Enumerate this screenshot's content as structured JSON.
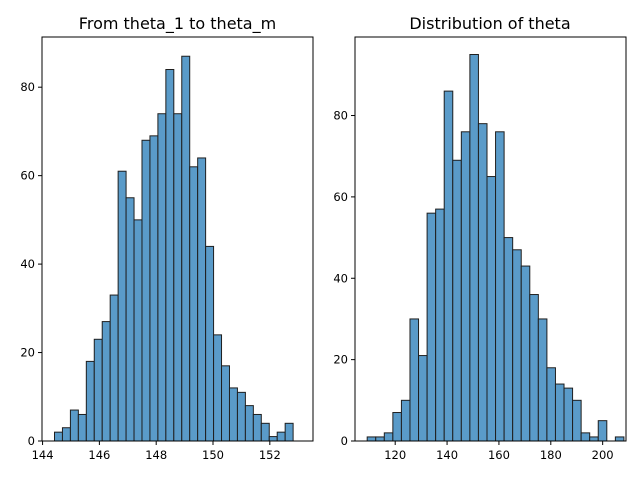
{
  "chart_data": [
    {
      "type": "bar",
      "title": "From theta_1 to theta_m",
      "xlabel": "",
      "ylabel": "",
      "xlim": [
        143.98,
        153.52
      ],
      "ylim": [
        0,
        91.35
      ],
      "xticks": [
        144,
        146,
        148,
        150,
        152
      ],
      "yticks": [
        0,
        20,
        40,
        60,
        80
      ],
      "grid": false,
      "bar_color": "#5a9bc9",
      "edge_color": "#1f1f1f",
      "bins": [
        {
          "x0": 144.42,
          "x1": 144.7,
          "count": 2
        },
        {
          "x0": 144.7,
          "x1": 144.98,
          "count": 3
        },
        {
          "x0": 144.98,
          "x1": 145.26,
          "count": 7
        },
        {
          "x0": 145.26,
          "x1": 145.54,
          "count": 6
        },
        {
          "x0": 145.54,
          "x1": 145.82,
          "count": 18
        },
        {
          "x0": 145.82,
          "x1": 146.1,
          "count": 23
        },
        {
          "x0": 146.1,
          "x1": 146.38,
          "count": 27
        },
        {
          "x0": 146.38,
          "x1": 146.66,
          "count": 33
        },
        {
          "x0": 146.66,
          "x1": 146.94,
          "count": 61
        },
        {
          "x0": 146.94,
          "x1": 147.22,
          "count": 55
        },
        {
          "x0": 147.22,
          "x1": 147.5,
          "count": 50
        },
        {
          "x0": 147.5,
          "x1": 147.78,
          "count": 68
        },
        {
          "x0": 147.78,
          "x1": 148.06,
          "count": 69
        },
        {
          "x0": 148.06,
          "x1": 148.34,
          "count": 74
        },
        {
          "x0": 148.34,
          "x1": 148.62,
          "count": 84
        },
        {
          "x0": 148.62,
          "x1": 148.9,
          "count": 74
        },
        {
          "x0": 148.9,
          "x1": 149.18,
          "count": 87
        },
        {
          "x0": 149.18,
          "x1": 149.46,
          "count": 62
        },
        {
          "x0": 149.46,
          "x1": 149.74,
          "count": 64
        },
        {
          "x0": 149.74,
          "x1": 150.02,
          "count": 44
        },
        {
          "x0": 150.02,
          "x1": 150.3,
          "count": 24
        },
        {
          "x0": 150.3,
          "x1": 150.58,
          "count": 17
        },
        {
          "x0": 150.58,
          "x1": 150.86,
          "count": 12
        },
        {
          "x0": 150.86,
          "x1": 151.14,
          "count": 11
        },
        {
          "x0": 151.14,
          "x1": 151.42,
          "count": 8
        },
        {
          "x0": 151.42,
          "x1": 151.7,
          "count": 6
        },
        {
          "x0": 151.7,
          "x1": 151.98,
          "count": 4
        },
        {
          "x0": 151.98,
          "x1": 152.26,
          "count": 1
        },
        {
          "x0": 152.26,
          "x1": 152.54,
          "count": 2
        },
        {
          "x0": 152.54,
          "x1": 152.82,
          "count": 4
        }
      ]
    },
    {
      "type": "bar",
      "title": "Distribution of theta",
      "xlabel": "",
      "ylabel": "",
      "xlim": [
        104.5,
        209.0
      ],
      "ylim": [
        0,
        99.3
      ],
      "xticks": [
        120,
        140,
        160,
        180,
        200
      ],
      "yticks": [
        0,
        20,
        40,
        60,
        80
      ],
      "grid": false,
      "bar_color": "#5a9bc9",
      "edge_color": "#1f1f1f",
      "bins": [
        {
          "x0": 109.2,
          "x1": 112.5,
          "count": 1
        },
        {
          "x0": 112.5,
          "x1": 115.8,
          "count": 1
        },
        {
          "x0": 115.8,
          "x1": 119.1,
          "count": 2
        },
        {
          "x0": 119.1,
          "x1": 122.4,
          "count": 7
        },
        {
          "x0": 122.4,
          "x1": 125.7,
          "count": 10
        },
        {
          "x0": 125.7,
          "x1": 129.0,
          "count": 30
        },
        {
          "x0": 129.0,
          "x1": 132.3,
          "count": 21
        },
        {
          "x0": 132.3,
          "x1": 135.6,
          "count": 56
        },
        {
          "x0": 135.6,
          "x1": 138.9,
          "count": 57
        },
        {
          "x0": 138.9,
          "x1": 142.2,
          "count": 86
        },
        {
          "x0": 142.2,
          "x1": 145.5,
          "count": 69
        },
        {
          "x0": 145.5,
          "x1": 148.8,
          "count": 76
        },
        {
          "x0": 148.8,
          "x1": 152.1,
          "count": 95
        },
        {
          "x0": 152.1,
          "x1": 155.4,
          "count": 78
        },
        {
          "x0": 155.4,
          "x1": 158.7,
          "count": 65
        },
        {
          "x0": 158.7,
          "x1": 162.0,
          "count": 76
        },
        {
          "x0": 162.0,
          "x1": 165.3,
          "count": 50
        },
        {
          "x0": 165.3,
          "x1": 168.6,
          "count": 47
        },
        {
          "x0": 168.6,
          "x1": 171.9,
          "count": 43
        },
        {
          "x0": 171.9,
          "x1": 175.2,
          "count": 36
        },
        {
          "x0": 175.2,
          "x1": 178.5,
          "count": 30
        },
        {
          "x0": 178.5,
          "x1": 181.8,
          "count": 18
        },
        {
          "x0": 181.8,
          "x1": 185.1,
          "count": 14
        },
        {
          "x0": 185.1,
          "x1": 188.4,
          "count": 13
        },
        {
          "x0": 188.4,
          "x1": 191.7,
          "count": 10
        },
        {
          "x0": 191.7,
          "x1": 195.0,
          "count": 2
        },
        {
          "x0": 195.0,
          "x1": 198.3,
          "count": 1
        },
        {
          "x0": 198.3,
          "x1": 201.6,
          "count": 5
        },
        {
          "x0": 201.6,
          "x1": 204.9,
          "count": 0
        },
        {
          "x0": 204.9,
          "x1": 208.2,
          "count": 1
        }
      ]
    }
  ]
}
